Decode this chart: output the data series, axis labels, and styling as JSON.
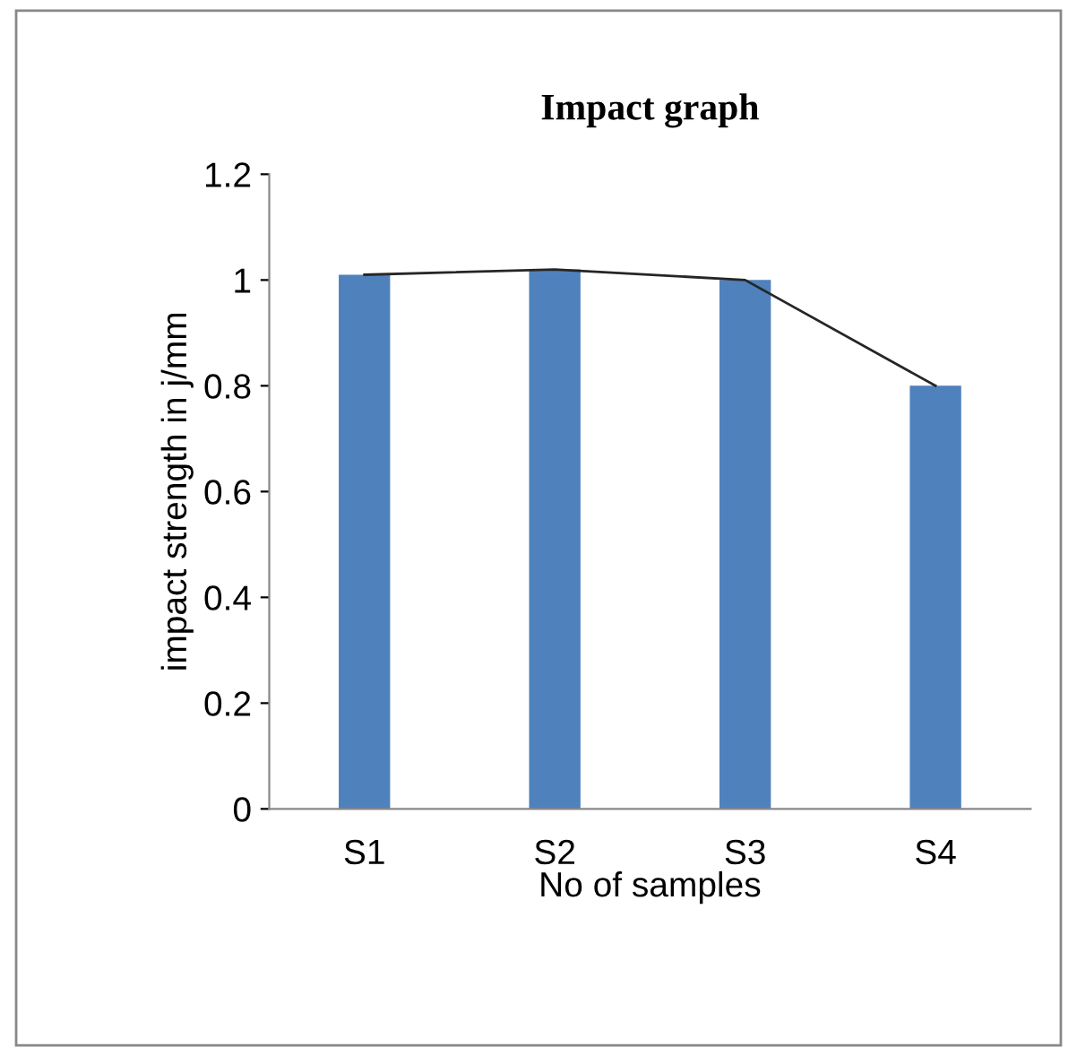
{
  "chart_data": {
    "type": "bar",
    "title": "Impact graph",
    "xlabel": "No of samples",
    "ylabel": "impact strength in j/mm",
    "categories": [
      "S1",
      "S2",
      "S3",
      "S4"
    ],
    "series": [
      {
        "color": "#4f81bd",
        "values": [
          1.01,
          1.02,
          1.0,
          0.8
        ]
      },
      {
        "type": "line",
        "color": "#262626",
        "values": [
          1.01,
          1.02,
          1.0,
          0.8
        ]
      }
    ],
    "ylim": [
      0,
      1.2
    ],
    "yticks": [
      {
        "value": 0,
        "label": "0"
      },
      {
        "value": 0.2,
        "label": "0.2"
      },
      {
        "value": 0.4,
        "label": "0.4"
      },
      {
        "value": 0.6,
        "label": "0.6"
      },
      {
        "value": 0.8,
        "label": "0.8"
      },
      {
        "value": 1,
        "label": "1"
      },
      {
        "value": 1.2,
        "label": "1.2"
      }
    ],
    "grid": false,
    "legend": false
  }
}
